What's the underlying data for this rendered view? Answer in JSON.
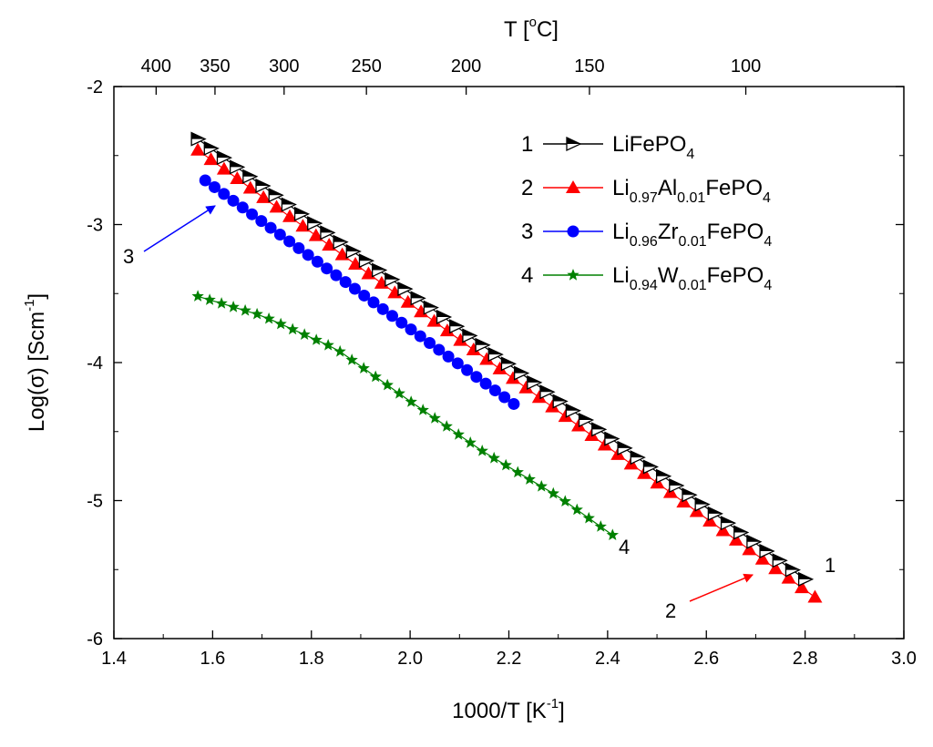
{
  "chart_data": {
    "type": "scatter",
    "title": "",
    "xlabel": "1000/T [K",
    "xlabel_sup": "-1",
    "xlabel_end": "]",
    "ylabel": "Log(σ) [Scm",
    "ylabel_sup": "-1",
    "ylabel_end": "]",
    "top_xlabel": "T [",
    "top_xlabel_sup": "o",
    "top_xlabel_end": "C]",
    "xlim": [
      1.4,
      3.0
    ],
    "ylim": [
      -6,
      -2
    ],
    "x_ticks": [
      1.4,
      1.6,
      1.8,
      2.0,
      2.2,
      2.4,
      2.6,
      2.8,
      3.0
    ],
    "x_tick_labels": [
      "1.4",
      "1.6",
      "1.8",
      "2.0",
      "2.2",
      "2.4",
      "2.6",
      "2.8",
      "3.0"
    ],
    "y_ticks": [
      -6,
      -5,
      -4,
      -3,
      -2
    ],
    "y_tick_labels": [
      "-6",
      "-5",
      "-4",
      "-3",
      "-2"
    ],
    "top_ticks_celsius": [
      400,
      350,
      300,
      250,
      200,
      150,
      100
    ],
    "top_tick_labels": [
      "400",
      "350",
      "300",
      "250",
      "200",
      "150",
      "100"
    ],
    "legend_position": "top-right",
    "series": [
      {
        "id": 1,
        "num_label": "1",
        "name_parts": [
          [
            "LiFePO",
            ""
          ],
          [
            "4",
            "sub"
          ]
        ],
        "color": "#000000",
        "marker": "tri-right",
        "x_start": 1.57,
        "x_end": 2.8,
        "y_start": -2.38,
        "y_end": -5.57,
        "n": 48
      },
      {
        "id": 2,
        "num_label": "2",
        "name_parts": [
          [
            "Li",
            ""
          ],
          [
            "0.97",
            "sub"
          ],
          [
            "Al",
            ""
          ],
          [
            "0.01",
            "sub"
          ],
          [
            "FePO",
            ""
          ],
          [
            "4",
            "sub"
          ]
        ],
        "color": "#ff0000",
        "marker": "triangle",
        "x_start": 1.57,
        "x_end": 2.82,
        "y_start": -2.46,
        "y_end": -5.7,
        "n": 48
      },
      {
        "id": 3,
        "num_label": "3",
        "name_parts": [
          [
            "Li",
            ""
          ],
          [
            "0.96",
            "sub"
          ],
          [
            "Zr",
            ""
          ],
          [
            "0.01",
            "sub"
          ],
          [
            "FePO",
            ""
          ],
          [
            "4",
            "sub"
          ]
        ],
        "color": "#0000ff",
        "marker": "circle",
        "x_start": 1.585,
        "x_end": 2.21,
        "y_start": -2.68,
        "y_end": -4.3,
        "n": 34
      },
      {
        "id": 4,
        "num_label": "4",
        "name_parts": [
          [
            "Li",
            ""
          ],
          [
            "0.94",
            "sub"
          ],
          [
            "W",
            ""
          ],
          [
            "0.01",
            "sub"
          ],
          [
            "FePO",
            ""
          ],
          [
            "4",
            "sub"
          ]
        ],
        "color": "#008000",
        "marker": "star",
        "x_start": 1.57,
        "x_end": 2.41,
        "y_start": -3.52,
        "y_end": -5.25,
        "n": 36,
        "curve": [
          [
            1.57,
            -3.52
          ],
          [
            1.7,
            -3.66
          ],
          [
            1.85,
            -3.9
          ],
          [
            2.0,
            -4.28
          ],
          [
            2.15,
            -4.65
          ],
          [
            2.3,
            -4.97
          ],
          [
            2.41,
            -5.25
          ]
        ]
      }
    ],
    "annotations": [
      {
        "text": "1",
        "series": 1
      },
      {
        "text": "2",
        "series": 2
      },
      {
        "text": "3",
        "series": 3
      },
      {
        "text": "4",
        "series": 4
      }
    ]
  }
}
